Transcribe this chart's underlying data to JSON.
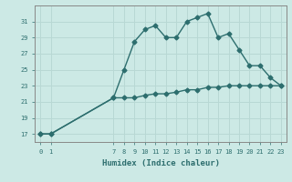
{
  "x": [
    0,
    1,
    7,
    8,
    9,
    10,
    11,
    12,
    13,
    14,
    15,
    16,
    17,
    18,
    19,
    20,
    21,
    22,
    23
  ],
  "y_upper": [
    17,
    17,
    21.5,
    25,
    28.5,
    30,
    30.5,
    29,
    29,
    31,
    31.5,
    32,
    29,
    29.5,
    27.5,
    25.5,
    25.5,
    24,
    23
  ],
  "y_lower": [
    17,
    17,
    21.5,
    21.5,
    21.5,
    21.8,
    22.0,
    22.0,
    22.2,
    22.5,
    22.5,
    22.8,
    22.8,
    23.0,
    23.0,
    23.0,
    23.0,
    23.0,
    23.0
  ],
  "line_color": "#2d6e6e",
  "bg_color": "#cce9e5",
  "grid_color": "#b8d8d4",
  "xlabel": "Humidex (Indice chaleur)",
  "ylim": [
    16,
    33
  ],
  "xlim": [
    -0.5,
    23.5
  ],
  "yticks": [
    17,
    19,
    21,
    23,
    25,
    27,
    29,
    31
  ],
  "xticks": [
    0,
    1,
    7,
    8,
    9,
    10,
    11,
    12,
    13,
    14,
    15,
    16,
    17,
    18,
    19,
    20,
    21,
    22,
    23
  ],
  "marker": "D",
  "markersize": 2.5,
  "linewidth": 1.0
}
